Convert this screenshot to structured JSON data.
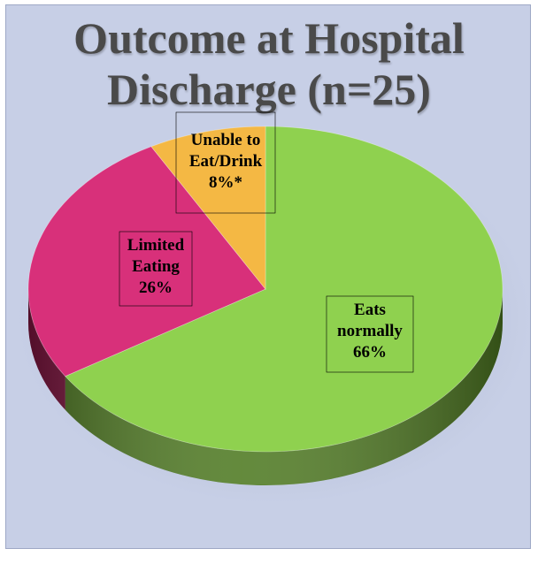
{
  "colors": {
    "background": "#c7cfe6",
    "title": "#4a4a4a"
  },
  "chart_data": {
    "type": "pie",
    "title": "Outcome at Hospital Discharge (n=25)",
    "title_lines": [
      "Outcome at Hospital",
      "Discharge (n=25)"
    ],
    "slices": [
      {
        "label": "Eats normally",
        "label_lines": [
          "Eats",
          "normally",
          "66%"
        ],
        "value": 66,
        "color": "#8fd14f",
        "side_color": "#4f7a22"
      },
      {
        "label": "Limited Eating",
        "label_lines": [
          "Limited",
          "Eating",
          "26%"
        ],
        "value": 26,
        "color": "#d8307a",
        "side_color": "#7f1540"
      },
      {
        "label": "Unable to Eat/Drink",
        "label_lines": [
          "Unable to",
          "Eat/Drink",
          "8%*"
        ],
        "value": 8,
        "color": "#f4b844",
        "side_color": "#9a6c18"
      }
    ],
    "style": "3d-pie",
    "legend": "none"
  }
}
